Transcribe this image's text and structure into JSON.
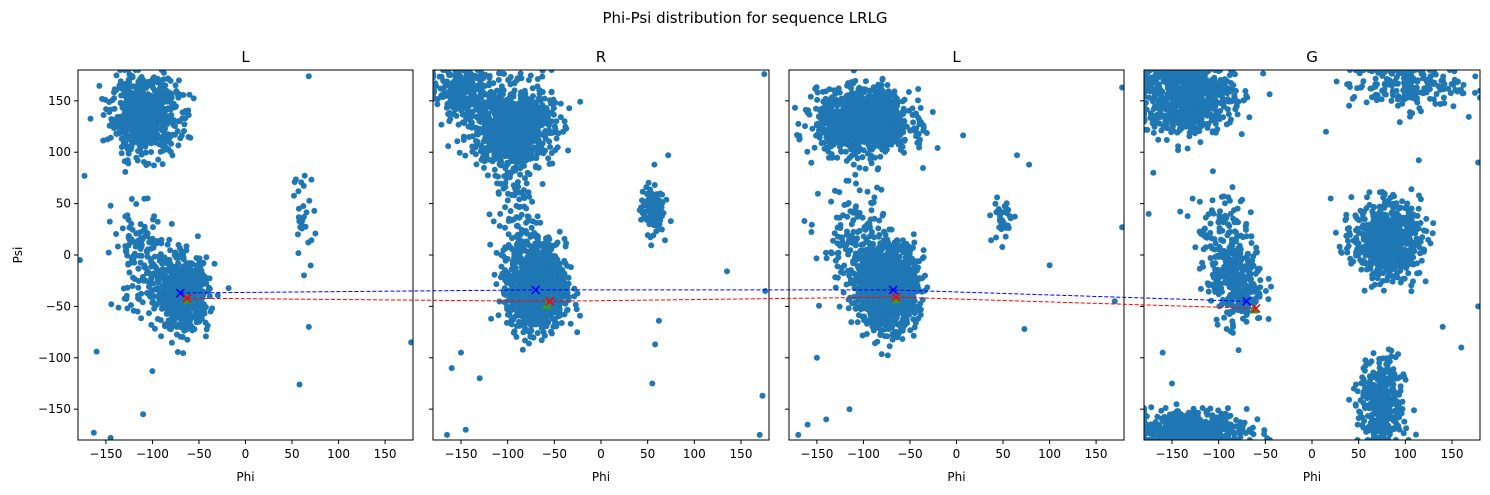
{
  "figure": {
    "suptitle": "Phi-Psi distribution for sequence LRLG"
  },
  "colors": {
    "scatter": "#1f77b4",
    "path_blue": "#0000ff",
    "path_red": "#ff0000",
    "marker_green": "#2ca02c"
  },
  "chart_data": [
    {
      "type": "scatter",
      "title": "L",
      "xlabel": "Phi",
      "ylabel": "Psi",
      "xlim": [
        -180,
        180
      ],
      "ylim": [
        -180,
        180
      ],
      "xticks": [
        -150,
        -100,
        -50,
        0,
        50,
        100,
        150
      ],
      "yticks": [
        -150,
        -100,
        -50,
        0,
        50,
        100,
        150
      ],
      "xtick_labels": [
        "−150",
        "−100",
        "−50",
        "0",
        "50",
        "100",
        "150"
      ],
      "ytick_labels": [
        "−150",
        "−100",
        "−50",
        "0",
        "50",
        "100",
        "150"
      ],
      "show_yticklabels": true,
      "clusters": [
        {
          "phi": -108,
          "psi": 135,
          "sphi": 18,
          "spsi": 18,
          "n": 700
        },
        {
          "phi": -68,
          "psi": -38,
          "sphi": 14,
          "spsi": 17,
          "n": 650
        },
        {
          "phi": -110,
          "psi": -5,
          "sphi": 16,
          "spsi": 25,
          "n": 150
        },
        {
          "phi": 62,
          "psi": 35,
          "sphi": 6,
          "spsi": 25,
          "n": 30
        }
      ],
      "points": [
        {
          "phi": 178,
          "psi": -85
        },
        {
          "phi": 68,
          "psi": 174
        },
        {
          "phi": 68,
          "psi": -70
        },
        {
          "phi": 58,
          "psi": -126
        },
        {
          "phi": -160,
          "psi": -94
        },
        {
          "phi": -100,
          "psi": -113
        },
        {
          "phi": -110,
          "psi": -155
        },
        {
          "phi": -163,
          "psi": -173
        },
        {
          "phi": -145,
          "psi": -178
        },
        {
          "phi": -178,
          "psi": -5
        },
        {
          "phi": -173,
          "psi": 77
        },
        {
          "phi": -145,
          "psi": 48
        }
      ],
      "path_blue": {
        "phi": -70,
        "psi": -37
      },
      "path_red": {
        "phi": -63,
        "psi": -42
      },
      "marker_green": {
        "phi": -63,
        "psi": -43
      }
    },
    {
      "type": "scatter",
      "title": "R",
      "xlabel": "Phi",
      "ylabel": "",
      "xlim": [
        -180,
        180
      ],
      "ylim": [
        -180,
        180
      ],
      "xticks": [
        -150,
        -100,
        -50,
        0,
        50,
        100,
        150
      ],
      "yticks": [
        -150,
        -100,
        -50,
        0,
        50,
        100,
        150
      ],
      "xtick_labels": [
        "−150",
        "−100",
        "−50",
        "0",
        "50",
        "100",
        "150"
      ],
      "show_yticklabels": false,
      "clusters": [
        {
          "phi": -95,
          "psi": 125,
          "sphi": 22,
          "spsi": 20,
          "n": 900
        },
        {
          "phi": -150,
          "psi": 160,
          "sphi": 16,
          "spsi": 12,
          "n": 250
        },
        {
          "phi": -68,
          "psi": -32,
          "sphi": 15,
          "spsi": 20,
          "n": 1100
        },
        {
          "phi": -90,
          "psi": 30,
          "sphi": 12,
          "spsi": 30,
          "n": 120
        },
        {
          "phi": 55,
          "psi": 45,
          "sphi": 6,
          "spsi": 12,
          "n": 140
        }
      ],
      "points": [
        {
          "phi": 175,
          "psi": 176
        },
        {
          "phi": 176,
          "psi": -35
        },
        {
          "phi": 173,
          "psi": -137
        },
        {
          "phi": 170,
          "psi": -175
        },
        {
          "phi": 135,
          "psi": -16
        },
        {
          "phi": 62,
          "psi": -64
        },
        {
          "phi": 58,
          "psi": -87
        },
        {
          "phi": 55,
          "psi": -125
        },
        {
          "phi": -150,
          "psi": -95
        },
        {
          "phi": -160,
          "psi": -110
        },
        {
          "phi": -130,
          "psi": -120
        },
        {
          "phi": -165,
          "psi": -175
        },
        {
          "phi": -145,
          "psi": -170
        },
        {
          "phi": 72,
          "psi": 97
        }
      ],
      "path_blue": {
        "phi": -70,
        "psi": -34
      },
      "path_red": {
        "phi": -55,
        "psi": -45
      },
      "marker_green": {
        "phi": -58,
        "psi": -49
      }
    },
    {
      "type": "scatter",
      "title": "L",
      "xlabel": "Phi",
      "ylabel": "",
      "xlim": [
        -180,
        180
      ],
      "ylim": [
        -180,
        180
      ],
      "xticks": [
        -150,
        -100,
        -50,
        0,
        50,
        100,
        150
      ],
      "yticks": [
        -150,
        -100,
        -50,
        0,
        50,
        100,
        150
      ],
      "xtick_labels": [
        "−150",
        "−100",
        "−50",
        "0",
        "50",
        "100",
        "150"
      ],
      "show_yticklabels": false,
      "clusters": [
        {
          "phi": -100,
          "psi": 130,
          "sphi": 25,
          "spsi": 15,
          "n": 1100
        },
        {
          "phi": -75,
          "psi": -30,
          "sphi": 16,
          "spsi": 20,
          "n": 1300
        },
        {
          "phi": -110,
          "psi": 10,
          "sphi": 18,
          "spsi": 30,
          "n": 150
        },
        {
          "phi": 50,
          "psi": 35,
          "sphi": 6,
          "spsi": 12,
          "n": 35
        }
      ],
      "points": [
        {
          "phi": 178,
          "psi": 163
        },
        {
          "phi": 178,
          "psi": 27
        },
        {
          "phi": 170,
          "psi": -45
        },
        {
          "phi": 73,
          "psi": -72
        },
        {
          "phi": 100,
          "psi": -10
        },
        {
          "phi": 65,
          "psi": 97
        },
        {
          "phi": 78,
          "psi": 88
        },
        {
          "phi": -150,
          "psi": -100
        },
        {
          "phi": -140,
          "psi": -160
        },
        {
          "phi": -170,
          "psi": -175
        },
        {
          "phi": -160,
          "psi": -165
        },
        {
          "phi": -115,
          "psi": -150
        }
      ],
      "path_blue": {
        "phi": -68,
        "psi": -34
      },
      "path_red": {
        "phi": -65,
        "psi": -41
      },
      "marker_green": {
        "phi": -65,
        "psi": -43
      }
    },
    {
      "type": "scatter",
      "title": "G",
      "xlabel": "Phi",
      "ylabel": "",
      "xlim": [
        -180,
        180
      ],
      "ylim": [
        -180,
        180
      ],
      "xticks": [
        -150,
        -100,
        -50,
        0,
        50,
        100,
        150
      ],
      "yticks": [
        -150,
        -100,
        -50,
        0,
        50,
        100,
        150
      ],
      "xtick_labels": [
        "−150",
        "−100",
        "−50",
        "0",
        "50",
        "100",
        "150"
      ],
      "show_yticklabels": false,
      "clusters": [
        {
          "phi": -135,
          "psi": 155,
          "sphi": 25,
          "spsi": 18,
          "n": 800
        },
        {
          "phi": 80,
          "psi": 15,
          "sphi": 18,
          "spsi": 18,
          "n": 700
        },
        {
          "phi": 75,
          "psi": -145,
          "sphi": 12,
          "spsi": 22,
          "n": 350
        },
        {
          "phi": -130,
          "psi": -170,
          "sphi": 30,
          "spsi": 10,
          "n": 500
        },
        {
          "phi": 100,
          "psi": 165,
          "sphi": 30,
          "spsi": 12,
          "n": 200
        },
        {
          "phi": -80,
          "psi": -25,
          "sphi": 14,
          "spsi": 22,
          "n": 300
        },
        {
          "phi": -100,
          "psi": 20,
          "sphi": 14,
          "spsi": 25,
          "n": 100
        }
      ],
      "points": [
        {
          "phi": 178,
          "psi": -50
        },
        {
          "phi": 178,
          "psi": 90
        },
        {
          "phi": 15,
          "psi": 120
        },
        {
          "phi": 140,
          "psi": -70
        },
        {
          "phi": 160,
          "psi": -90
        },
        {
          "phi": -160,
          "psi": -95
        },
        {
          "phi": -150,
          "psi": -125
        },
        {
          "phi": -170,
          "psi": 80
        },
        {
          "phi": 20,
          "psi": 55
        },
        {
          "phi": -175,
          "psi": 40
        }
      ],
      "path_blue": {
        "phi": -70,
        "psi": -45
      },
      "path_red": {
        "phi": -60,
        "psi": -52
      },
      "marker_green": {
        "phi": -62,
        "psi": -53
      }
    }
  ]
}
